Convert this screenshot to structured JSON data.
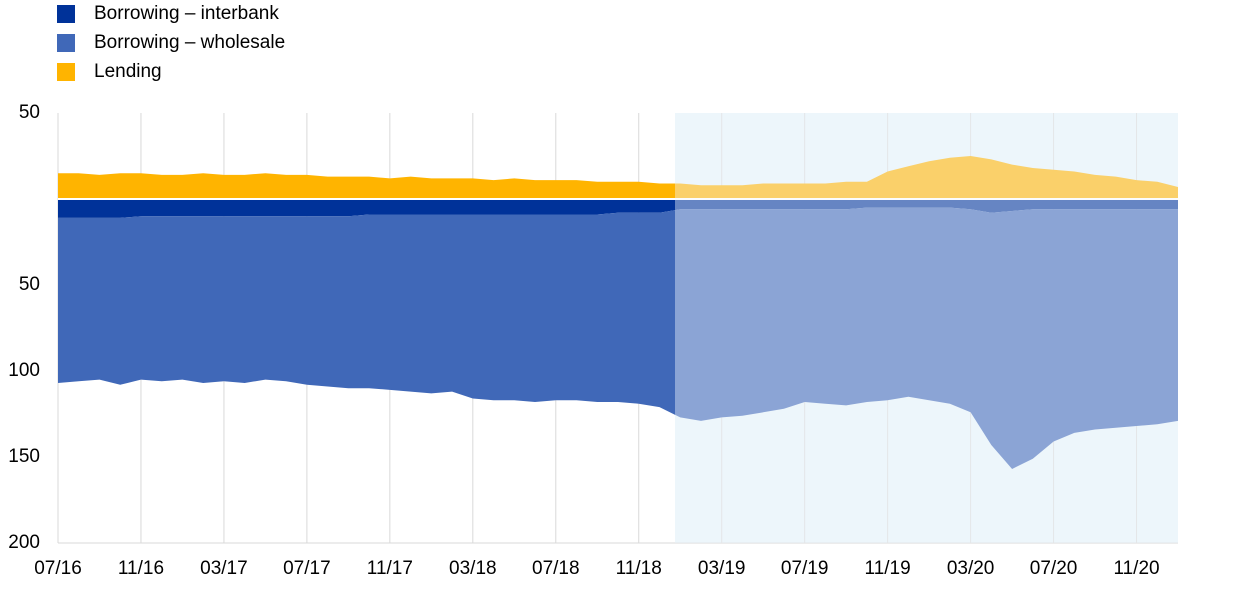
{
  "chart_data": {
    "type": "stacked-area",
    "categories": [
      "07/16",
      null,
      null,
      null,
      "11/16",
      null,
      null,
      null,
      "03/17",
      null,
      null,
      null,
      "07/17",
      null,
      null,
      null,
      "11/17",
      null,
      null,
      null,
      "03/18",
      null,
      null,
      null,
      "07/18",
      null,
      null,
      null,
      "11/18",
      null,
      null,
      null,
      "03/19",
      null,
      null,
      null,
      "07/19",
      null,
      null,
      null,
      "11/19",
      null,
      null,
      null,
      "03/20",
      null,
      null,
      null,
      "07/20",
      null,
      null,
      null,
      "11/20",
      null,
      null
    ],
    "series": [
      {
        "name": "Borrowing – interbank",
        "color": "#003299",
        "values": [
          -11,
          -11,
          -11,
          -11,
          -10,
          -10,
          -10,
          -10,
          -10,
          -10,
          -10,
          -10,
          -10,
          -10,
          -10,
          -9,
          -9,
          -9,
          -9,
          -9,
          -9,
          -9,
          -9,
          -9,
          -9,
          -9,
          -9,
          -8,
          -8,
          -8,
          -6,
          -6,
          -6,
          -6,
          -6,
          -6,
          -6,
          -6,
          -6,
          -5,
          -5,
          -5,
          -5,
          -5,
          -6,
          -8,
          -7,
          -6,
          -6,
          -6,
          -6,
          -6,
          -6,
          -6,
          -6
        ]
      },
      {
        "name": "Borrowing – wholesale",
        "color": "#4068b8",
        "values": [
          -96,
          -95,
          -94,
          -97,
          -95,
          -96,
          -95,
          -97,
          -96,
          -97,
          -95,
          -96,
          -98,
          -99,
          -100,
          -101,
          -102,
          -103,
          -104,
          -103,
          -107,
          -108,
          -108,
          -109,
          -108,
          -108,
          -109,
          -110,
          -111,
          -113,
          -121,
          -123,
          -121,
          -120,
          -118,
          -116,
          -112,
          -113,
          -114,
          -113,
          -112,
          -110,
          -112,
          -114,
          -118,
          -135,
          -150,
          -145,
          -135,
          -130,
          -128,
          -127,
          -126,
          -125,
          -123
        ]
      },
      {
        "name": "Lending",
        "color": "#ffb400",
        "values": [
          15,
          15,
          14,
          15,
          15,
          14,
          14,
          15,
          14,
          14,
          15,
          14,
          14,
          13,
          13,
          13,
          12,
          13,
          12,
          12,
          12,
          11,
          12,
          11,
          11,
          11,
          10,
          10,
          10,
          9,
          9,
          8,
          8,
          8,
          9,
          9,
          9,
          9,
          10,
          10,
          16,
          19,
          22,
          24,
          25,
          23,
          20,
          18,
          17,
          16,
          14,
          13,
          11,
          10,
          7
        ]
      }
    ],
    "ylim": [
      50,
      -200
    ],
    "yticks": [
      50,
      {
        "value": -50,
        "label": "50"
      },
      {
        "value": -100,
        "label": "100"
      },
      {
        "value": -150,
        "label": "150"
      },
      {
        "value": -200,
        "label": "200"
      }
    ],
    "legend": "top-left"
  }
}
